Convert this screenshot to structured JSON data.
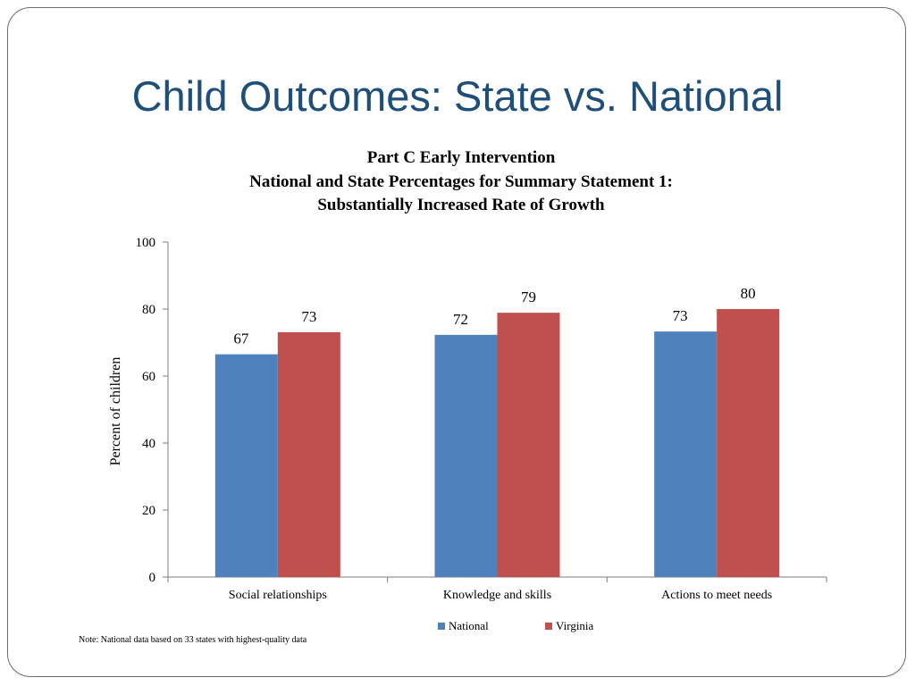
{
  "slide": {
    "title": "Child Outcomes: State vs. National",
    "note": "Note: National data based on 33 states with highest-quality data"
  },
  "colors": {
    "title": "#1f4e79",
    "national": "#4f81bd",
    "virginia": "#c0504d",
    "axis": "#7f7f7f"
  },
  "chart_data": {
    "type": "bar",
    "title_lines": [
      "Part C Early Intervention",
      "National and State Percentages for Summary Statement 1:",
      "Substantially Increased Rate of Growth"
    ],
    "xlabel": "",
    "ylabel": "Percent of children",
    "ylim": [
      0,
      100
    ],
    "yticks": [
      0,
      20,
      40,
      60,
      80,
      100
    ],
    "grid": false,
    "legend_position": "bottom",
    "categories": [
      "Social relationships",
      "Knowledge and skills",
      "Actions to meet needs"
    ],
    "series": [
      {
        "name": "National",
        "values": [
          66.5,
          72.3,
          73.3
        ],
        "labels": [
          "67",
          "72",
          "73"
        ]
      },
      {
        "name": "Virginia",
        "values": [
          73.1,
          78.9,
          80.0
        ],
        "labels": [
          "73",
          "79",
          "80"
        ]
      }
    ]
  }
}
